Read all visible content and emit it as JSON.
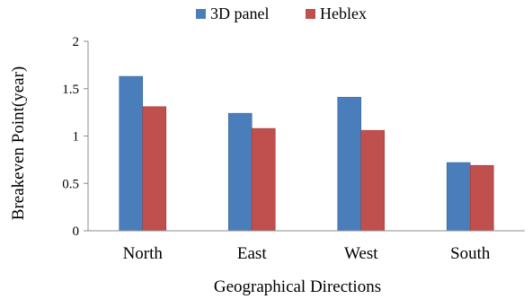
{
  "chart_data": {
    "type": "bar",
    "categories": [
      "North",
      "East",
      "West",
      "South"
    ],
    "series": [
      {
        "name": "3D panel",
        "values": [
          1.63,
          1.24,
          1.41,
          0.72
        ],
        "color": "#4a7ebb"
      },
      {
        "name": "Heblex",
        "values": [
          1.31,
          1.08,
          1.06,
          0.69
        ],
        "color": "#c0504d"
      }
    ],
    "yticks": [
      "0",
      "0.5",
      "1",
      "1.5",
      "2"
    ],
    "ylim": [
      0,
      2
    ],
    "xlabel": "Geographical Directions",
    "ylabel": "Breakeven Point(year)",
    "legend_position": "top",
    "grid": false
  }
}
